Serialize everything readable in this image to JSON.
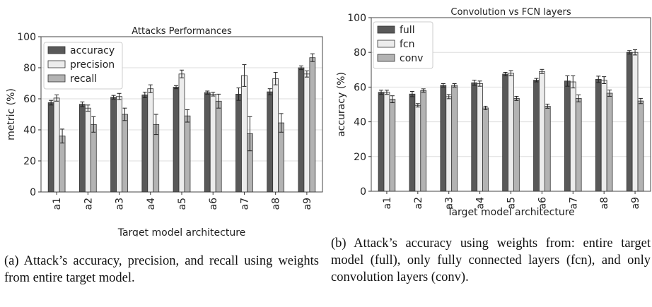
{
  "chart_data": [
    {
      "type": "bar",
      "title": "Attacks Performances",
      "xlabel": "Target model architecture",
      "ylabel": "metric (%)",
      "ylim": [
        0,
        100
      ],
      "yticks": [
        0,
        20,
        40,
        60,
        80,
        100
      ],
      "grid": true,
      "legend_position": "top-left",
      "categories": [
        "a1",
        "a2",
        "a3",
        "a4",
        "a5",
        "a6",
        "a7",
        "a8",
        "a9"
      ],
      "series": [
        {
          "name": "accuracy",
          "color": "#595959",
          "values": [
            57.5,
            56.5,
            61,
            62.5,
            67.5,
            64,
            63,
            64.5,
            80
          ],
          "errors": [
            1.5,
            1.5,
            1.2,
            1.8,
            1,
            1,
            4,
            2,
            1.2
          ]
        },
        {
          "name": "precision",
          "color": "#ececec",
          "values": [
            60.5,
            54,
            61.5,
            66.5,
            76,
            63,
            75,
            73,
            76
          ],
          "errors": [
            2,
            2,
            2,
            2.5,
            2.5,
            1.2,
            7,
            4,
            2
          ]
        },
        {
          "name": "recall",
          "color": "#b3b3b3",
          "values": [
            36,
            43.5,
            50,
            43.5,
            49,
            58.5,
            37.5,
            44.5,
            86.5
          ],
          "errors": [
            4.5,
            5,
            4,
            6.5,
            4,
            4.5,
            11,
            6,
            2.5
          ]
        }
      ],
      "caption": "(a) Attack’s accuracy, precision, and recall using weights from entire target model."
    },
    {
      "type": "bar",
      "title": "Convolution vs FCN layers",
      "xlabel": "Target model architecture",
      "ylabel": "accuracy (%)",
      "ylim": [
        0,
        100
      ],
      "yticks": [
        0,
        20,
        40,
        60,
        80,
        100
      ],
      "grid": true,
      "legend_position": "top-left",
      "categories": [
        "a1",
        "a2",
        "a3",
        "a4",
        "a5",
        "a6",
        "a7",
        "a8",
        "a9"
      ],
      "series": [
        {
          "name": "full",
          "color": "#595959",
          "values": [
            57,
            56,
            61,
            62.5,
            67.5,
            64,
            63.5,
            64.5,
            80
          ],
          "errors": [
            1.2,
            1.5,
            1,
            1.5,
            1,
            1,
            3,
            1.8,
            1
          ]
        },
        {
          "name": "fcn",
          "color": "#ececec",
          "values": [
            57,
            49.5,
            54.5,
            62,
            68,
            69,
            63,
            64,
            80
          ],
          "errors": [
            1.2,
            1,
            1.2,
            1.5,
            1.5,
            1.2,
            3.5,
            2,
            1.5
          ]
        },
        {
          "name": "conv",
          "color": "#b3b3b3",
          "values": [
            53,
            58,
            61,
            48,
            53.5,
            49,
            53.5,
            56.5,
            52
          ],
          "errors": [
            2,
            1,
            1,
            1,
            1.2,
            1.2,
            2,
            1.8,
            1.5
          ]
        }
      ],
      "caption": "(b) Attack’s accuracy using weights from: entire target model (full), only fully connected layers (fcn), and only convolution layers (conv)."
    }
  ]
}
